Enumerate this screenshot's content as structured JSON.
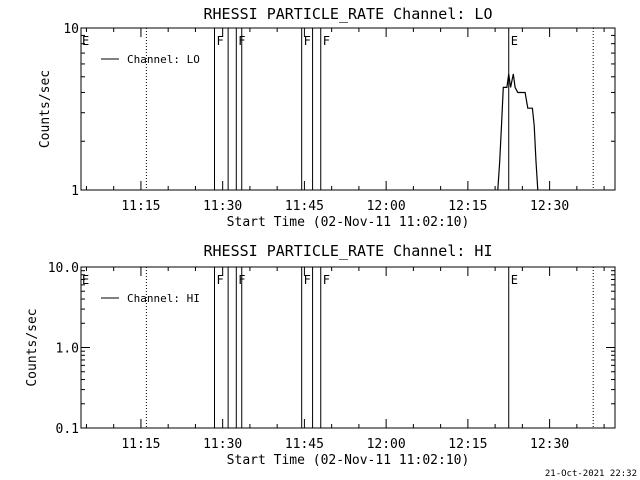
{
  "footer": {
    "timestamp": "21-Oct-2021 22:32"
  },
  "chart_data": [
    {
      "type": "line",
      "title": "RHESSI PARTICLE_RATE Channel: LO",
      "xlabel": "Start Time (02-Nov-11 11:02:10)",
      "ylabel": "Counts/sec",
      "yscale": "log",
      "ylim": [
        1,
        10
      ],
      "y_ticks": [
        {
          "value": 1,
          "label": "1"
        },
        {
          "value": 10,
          "label": "10"
        }
      ],
      "xlim": [
        "11:04:00",
        "12:42:00"
      ],
      "x_ticks": [
        {
          "value": "11:15",
          "label": "11:15"
        },
        {
          "value": "11:30",
          "label": "11:30"
        },
        {
          "value": "11:45",
          "label": "11:45"
        },
        {
          "value": "12:00",
          "label": "12:00"
        },
        {
          "value": "12:15",
          "label": "12:15"
        },
        {
          "value": "12:30",
          "label": "12:30"
        }
      ],
      "legend": {
        "placement": "top-left",
        "entries": [
          "Channel: LO"
        ]
      },
      "dotted_lines": [
        "11:16",
        "12:38"
      ],
      "flag_lines": [
        {
          "time": "11:28:30",
          "label": "F"
        },
        {
          "time": "11:31:00",
          "label": ""
        },
        {
          "time": "11:32:30",
          "label": "F"
        },
        {
          "time": "11:33:30",
          "label": ""
        },
        {
          "time": "11:44:30",
          "label": "F"
        },
        {
          "time": "11:46:30",
          "label": ""
        },
        {
          "time": "11:48:00",
          "label": "F"
        },
        {
          "time": "12:22:30",
          "label": "E"
        }
      ],
      "edge_flags": [
        {
          "time": "11:04:00",
          "label": "E"
        }
      ],
      "series": [
        {
          "name": "Channel: LO",
          "points": [
            [
              "12:20:10",
              0.9
            ],
            [
              "12:20:30",
              1.0
            ],
            [
              "12:20:50",
              1.5
            ],
            [
              "12:21:10",
              2.5
            ],
            [
              "12:21:30",
              4.3
            ],
            [
              "12:21:50",
              4.3
            ],
            [
              "12:22:10",
              4.3
            ],
            [
              "12:22:30",
              5.2
            ],
            [
              "12:22:50",
              4.3
            ],
            [
              "12:23:20",
              5.2
            ],
            [
              "12:23:40",
              4.3
            ],
            [
              "12:24:10",
              4.0
            ],
            [
              "12:25:30",
              4.0
            ],
            [
              "12:26:00",
              3.2
            ],
            [
              "12:26:50",
              3.2
            ],
            [
              "12:27:10",
              2.5
            ],
            [
              "12:27:30",
              1.5
            ],
            [
              "12:27:50",
              1.0
            ]
          ]
        }
      ]
    },
    {
      "type": "line",
      "title": "RHESSI PARTICLE_RATE Channel: HI",
      "xlabel": "Start Time (02-Nov-11 11:02:10)",
      "ylabel": "Counts/sec",
      "yscale": "log",
      "ylim": [
        0.1,
        10
      ],
      "y_ticks": [
        {
          "value": 0.1,
          "label": "0.1"
        },
        {
          "value": 1,
          "label": "1.0"
        },
        {
          "value": 10,
          "label": "10.0"
        }
      ],
      "xlim": [
        "11:04:00",
        "12:42:00"
      ],
      "x_ticks": [
        {
          "value": "11:15",
          "label": "11:15"
        },
        {
          "value": "11:30",
          "label": "11:30"
        },
        {
          "value": "11:45",
          "label": "11:45"
        },
        {
          "value": "12:00",
          "label": "12:00"
        },
        {
          "value": "12:15",
          "label": "12:15"
        },
        {
          "value": "12:30",
          "label": "12:30"
        }
      ],
      "legend": {
        "placement": "top-left",
        "entries": [
          "Channel: HI"
        ]
      },
      "dotted_lines": [
        "11:16",
        "12:38"
      ],
      "flag_lines": [
        {
          "time": "11:28:30",
          "label": "F"
        },
        {
          "time": "11:31:00",
          "label": ""
        },
        {
          "time": "11:32:30",
          "label": "F"
        },
        {
          "time": "11:33:30",
          "label": ""
        },
        {
          "time": "11:44:30",
          "label": "F"
        },
        {
          "time": "11:46:30",
          "label": ""
        },
        {
          "time": "11:48:00",
          "label": "F"
        },
        {
          "time": "12:22:30",
          "label": "E"
        }
      ],
      "edge_flags": [
        {
          "time": "11:04:00",
          "label": "E"
        }
      ],
      "series": [
        {
          "name": "Channel: HI",
          "points": []
        }
      ]
    }
  ]
}
